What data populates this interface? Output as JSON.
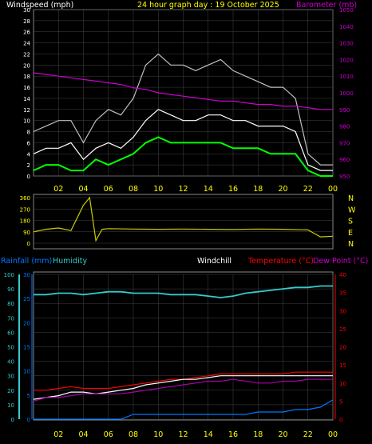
{
  "title": "24 hour graph day : 19 October 2025",
  "colors": {
    "wind": "#ffffff",
    "gust": "#c0c0c0",
    "avg": "#00ff00",
    "baro": "#cc00cc",
    "dir": "#cccc00",
    "rain": "#0077ff",
    "humidity": "#33cccc",
    "temp": "#ff0000",
    "dew": "#aa00aa",
    "chill": "#ffffff",
    "xtick": "#ffff00",
    "grid": "#444444"
  },
  "labels": {
    "windspeed": "Windspeed (mph)",
    "barometer": "Barometer (mb)",
    "rainfall": "Rainfall (mm)",
    "humidity": "Humidity",
    "windchill": "Windchill",
    "temperature": "Temperature (°C)",
    "dewpoint": "Dew Point (°C)"
  },
  "x_ticks": [
    "02",
    "04",
    "06",
    "08",
    "10",
    "12",
    "14",
    "16",
    "18",
    "20",
    "22",
    "00"
  ],
  "chart_data": [
    {
      "type": "line",
      "name": "wind",
      "x_hours": [
        0,
        1,
        2,
        3,
        4,
        5,
        6,
        7,
        8,
        9,
        10,
        11,
        12,
        13,
        14,
        15,
        16,
        17,
        18,
        19,
        20,
        21,
        22,
        23,
        24
      ],
      "series": [
        {
          "name": "Windspeed (mph)",
          "axis": "left",
          "values": [
            4,
            5,
            5,
            6,
            3,
            5,
            6,
            5,
            7,
            10,
            12,
            11,
            10,
            10,
            11,
            11,
            10,
            10,
            9,
            9,
            9,
            8,
            2,
            1,
            1
          ]
        },
        {
          "name": "Gust",
          "axis": "left",
          "values": [
            8,
            9,
            10,
            10,
            6,
            10,
            12,
            11,
            14,
            20,
            22,
            20,
            20,
            19,
            20,
            21,
            19,
            18,
            17,
            16,
            16,
            14,
            4,
            2,
            2
          ]
        },
        {
          "name": "Average",
          "axis": "left",
          "values": [
            1,
            2,
            2,
            1,
            1,
            3,
            2,
            3,
            4,
            6,
            7,
            6,
            6,
            6,
            6,
            6,
            5,
            5,
            5,
            4,
            4,
            4,
            1,
            0,
            0
          ]
        },
        {
          "name": "Barometer (mb)",
          "axis": "right",
          "values": [
            1012,
            1011,
            1010,
            1009,
            1008,
            1007,
            1006,
            1005,
            1003,
            1002,
            1000,
            999,
            998,
            997,
            996,
            995,
            995,
            994,
            993,
            993,
            992,
            992,
            991,
            990,
            990
          ]
        }
      ],
      "y_left": {
        "min": 0,
        "max": 30,
        "ticks": [
          0,
          2,
          4,
          6,
          8,
          10,
          12,
          14,
          16,
          18,
          20,
          22,
          24,
          26,
          28,
          30
        ]
      },
      "y_right": {
        "min": 950,
        "max": 1050,
        "ticks": [
          950,
          960,
          970,
          980,
          990,
          1000,
          1010,
          1020,
          1030,
          1040,
          1050
        ]
      }
    },
    {
      "type": "line",
      "name": "wind direction",
      "x_hours": [
        0,
        1,
        2,
        3,
        4,
        4.5,
        5,
        5.5,
        6,
        8,
        10,
        12,
        14,
        16,
        18,
        20,
        22,
        23,
        24
      ],
      "series": [
        {
          "name": "Direction",
          "values": [
            90,
            110,
            120,
            100,
            300,
            360,
            20,
            110,
            115,
            112,
            110,
            112,
            110,
            108,
            112,
            110,
            105,
            50,
            55
          ]
        }
      ],
      "y_left": {
        "min": 0,
        "max": 360,
        "ticks": [
          0,
          90,
          180,
          270,
          360
        ]
      },
      "y_right_labels": [
        "N",
        "W",
        "S",
        "E",
        "N"
      ]
    },
    {
      "type": "line",
      "name": "temperature humidity rain",
      "x_hours": [
        0,
        1,
        2,
        3,
        4,
        5,
        6,
        7,
        8,
        9,
        10,
        11,
        12,
        13,
        14,
        15,
        16,
        17,
        18,
        19,
        20,
        21,
        22,
        23,
        24
      ],
      "series": [
        {
          "name": "Rainfall (mm)",
          "axis": "left",
          "values": [
            0,
            0,
            0,
            0,
            0,
            0,
            0,
            0,
            1,
            1,
            1,
            1,
            1,
            1,
            1,
            1,
            1,
            1,
            1.5,
            1.5,
            1.5,
            2,
            2,
            2.5,
            4
          ]
        },
        {
          "name": "Humidity",
          "axis": "left",
          "values": [
            86,
            86,
            87,
            87,
            86,
            87,
            88,
            88,
            87,
            87,
            87,
            86,
            86,
            86,
            85,
            84,
            85,
            87,
            88,
            89,
            90,
            91,
            91,
            92,
            92
          ]
        },
        {
          "name": "Temperature (°C)",
          "axis": "right",
          "values": [
            8,
            8,
            8.5,
            9,
            8.5,
            8.5,
            8.5,
            9,
            9.5,
            10,
            10.5,
            11,
            11,
            11.5,
            12,
            12.5,
            12.5,
            12.5,
            12.5,
            12.5,
            12.5,
            13,
            13,
            13,
            13
          ]
        },
        {
          "name": "Windchill",
          "axis": "right",
          "values": [
            5.5,
            6,
            6.5,
            7.5,
            7.5,
            7,
            7.5,
            8,
            8.5,
            9.5,
            10,
            10.5,
            11,
            11,
            11.5,
            12,
            12,
            12,
            12,
            12,
            12,
            12,
            12,
            12,
            12
          ]
        },
        {
          "name": "Dew Point (°C)",
          "axis": "right",
          "values": [
            5,
            6,
            6,
            6.5,
            7,
            7,
            7,
            7,
            7.5,
            8,
            8.5,
            9,
            9.5,
            10,
            10.5,
            10.5,
            11,
            10.5,
            10,
            10,
            10.5,
            10.5,
            11,
            11,
            11
          ]
        }
      ],
      "y_left": {
        "min": 0,
        "max": 100,
        "ticks": [
          0,
          10,
          20,
          30,
          40,
          50,
          60,
          70,
          80,
          90,
          100
        ]
      },
      "y_left_rain": {
        "min": 0,
        "max": 30,
        "ticks": [
          0,
          5,
          10,
          15,
          20,
          25,
          30
        ]
      },
      "y_right": {
        "min": 0,
        "max": 40,
        "ticks": [
          0,
          5,
          10,
          15,
          20,
          25,
          30,
          35,
          40
        ]
      }
    }
  ]
}
